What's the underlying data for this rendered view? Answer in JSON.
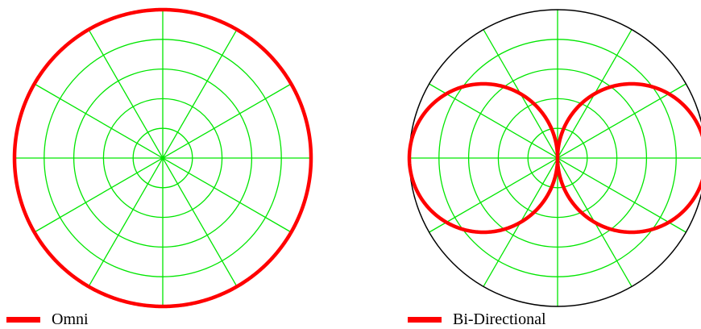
{
  "colors": {
    "grid": "#00e600",
    "boundary": "#000000",
    "series": "#ff0000",
    "background": "#ffffff"
  },
  "chart_data": [
    {
      "type": "polar-line",
      "theta_unit": "degrees",
      "theta_grid_step": 30,
      "radial_grid": [
        0.2,
        0.4,
        0.6,
        0.8,
        1.0
      ],
      "rlim": [
        0,
        1
      ],
      "grid": true,
      "legend_position": "bottom-left",
      "series": [
        {
          "name": "Omni",
          "pattern": "omnidirectional",
          "formula": "r = 1",
          "color": "#ff0000"
        }
      ]
    },
    {
      "type": "polar-line",
      "theta_unit": "degrees",
      "theta_grid_step": 30,
      "radial_grid": [
        0.2,
        0.4,
        0.6,
        0.8,
        1.0
      ],
      "rlim": [
        0,
        1
      ],
      "grid": true,
      "legend_position": "bottom-left",
      "series": [
        {
          "name": "Bi-Directional",
          "pattern": "figure-eight",
          "formula": "r = |cos(theta)|",
          "color": "#ff0000"
        }
      ]
    }
  ],
  "legend": {
    "omni": "Omni",
    "bidirectional": "Bi-Directional"
  }
}
